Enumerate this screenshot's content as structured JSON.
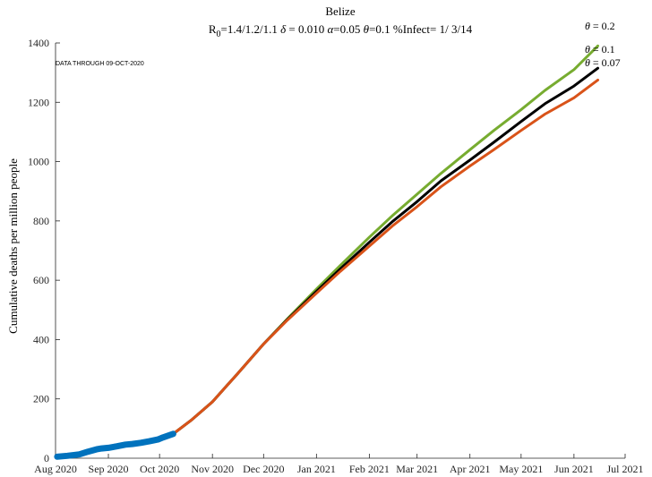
{
  "chart_data": {
    "type": "line",
    "title": "Belize",
    "subtitle": {
      "r_sym": "R",
      "r_sub": "0",
      "r_vals": "=1.4/1.2/1.1",
      "delta_sym": "δ",
      "delta_val": " = 0.010",
      "alpha_sym": "α",
      "alpha_val": "=0.05",
      "theta_sym": "θ",
      "theta_val": "=0.1",
      "infect": "%Infect= 1/ 3/14"
    },
    "annotation": "DATA THROUGH 09-OCT-2020",
    "xlabel": "",
    "ylabel": "Cumulative deaths per million people",
    "xlim": [
      "2020-08-01",
      "2021-07-01"
    ],
    "ylim": [
      0,
      1400
    ],
    "yticks": [
      0,
      200,
      400,
      600,
      800,
      1000,
      1200,
      1400
    ],
    "xticks": [
      "2020-08-01",
      "2020-09-01",
      "2020-10-01",
      "2020-11-01",
      "2020-12-01",
      "2021-01-01",
      "2021-02-01",
      "2021-03-01",
      "2021-04-01",
      "2021-05-01",
      "2021-06-01",
      "2021-07-01"
    ],
    "xtick_labels": [
      "Aug 2020",
      "Sep 2020",
      "Oct 2020",
      "Nov 2020",
      "Dec 2020",
      "Jan 2021",
      "Feb 2021",
      "Mar 2021",
      "Apr 2021",
      "May 2021",
      "Jun 2021",
      "Jul 2021"
    ],
    "grid": false,
    "series": [
      {
        "name": "θ = 0.2",
        "color": "#77ac30",
        "x": [
          "2020-10-09",
          "2020-10-20",
          "2020-11-01",
          "2020-11-15",
          "2020-12-01",
          "2020-12-15",
          "2021-01-01",
          "2021-01-15",
          "2021-02-01",
          "2021-02-15",
          "2021-03-01",
          "2021-03-15",
          "2021-04-01",
          "2021-04-15",
          "2021-05-01",
          "2021-05-15",
          "2021-06-01",
          "2021-06-15"
        ],
        "y": [
          82,
          130,
          190,
          280,
          385,
          470,
          570,
          650,
          745,
          820,
          890,
          960,
          1040,
          1105,
          1175,
          1240,
          1310,
          1390
        ]
      },
      {
        "name": "θ = 0.1",
        "color": "#000000",
        "x": [
          "2020-10-09",
          "2020-10-20",
          "2020-11-01",
          "2020-11-15",
          "2020-12-01",
          "2020-12-15",
          "2021-01-01",
          "2021-01-15",
          "2021-02-01",
          "2021-02-15",
          "2021-03-01",
          "2021-03-15",
          "2021-04-01",
          "2021-04-15",
          "2021-05-01",
          "2021-05-15",
          "2021-06-01",
          "2021-06-15"
        ],
        "y": [
          82,
          130,
          190,
          280,
          385,
          468,
          562,
          638,
          728,
          800,
          865,
          935,
          1005,
          1065,
          1135,
          1195,
          1255,
          1315
        ]
      },
      {
        "name": "θ = 0.07",
        "color": "#d95319",
        "x": [
          "2020-10-09",
          "2020-10-20",
          "2020-11-01",
          "2020-11-15",
          "2020-12-01",
          "2020-12-15",
          "2021-01-01",
          "2021-01-15",
          "2021-02-01",
          "2021-02-15",
          "2021-03-01",
          "2021-03-15",
          "2021-04-01",
          "2021-04-15",
          "2021-05-01",
          "2021-05-15",
          "2021-06-01",
          "2021-06-15"
        ],
        "y": [
          82,
          130,
          190,
          280,
          385,
          466,
          556,
          630,
          715,
          785,
          848,
          915,
          985,
          1040,
          1105,
          1160,
          1215,
          1275
        ]
      },
      {
        "name": "",
        "color": "#0072bd",
        "x": [
          "2020-08-02",
          "2020-08-08",
          "2020-08-15",
          "2020-08-20",
          "2020-08-25",
          "2020-08-28",
          "2020-09-01",
          "2020-09-06",
          "2020-09-11",
          "2020-09-15",
          "2020-09-20",
          "2020-09-25",
          "2020-09-30",
          "2020-10-03",
          "2020-10-06",
          "2020-10-09"
        ],
        "y": [
          5,
          8,
          13,
          22,
          30,
          33,
          35,
          40,
          46,
          48,
          52,
          57,
          63,
          70,
          76,
          82
        ]
      }
    ]
  }
}
